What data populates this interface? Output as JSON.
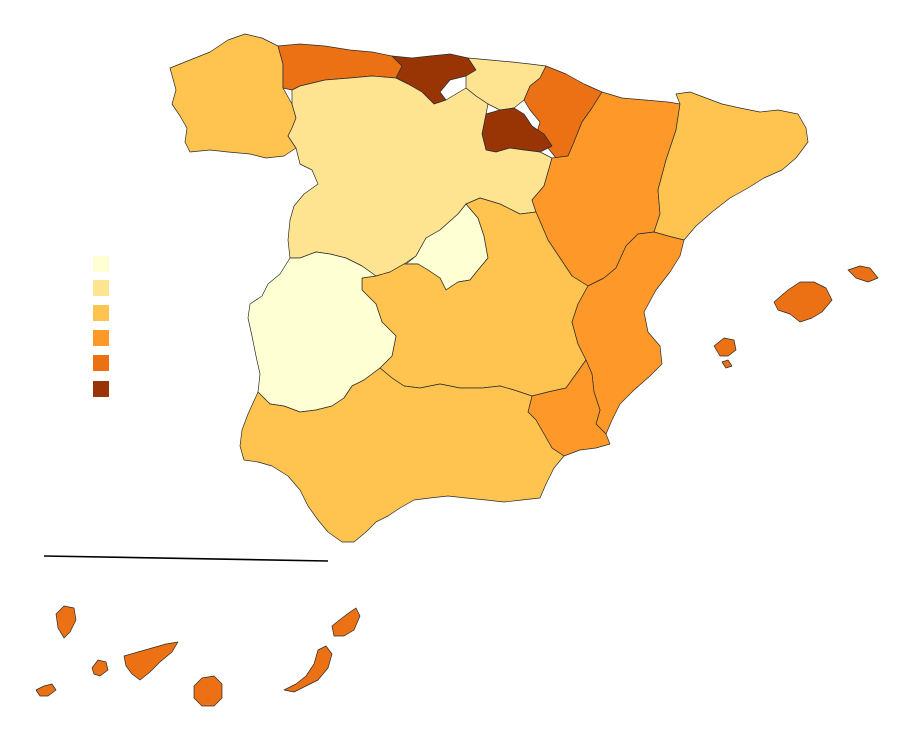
{
  "map": {
    "legend": {
      "classes": [
        {
          "id": "class-1",
          "color": "#ffffd4"
        },
        {
          "id": "class-2",
          "color": "#fee391"
        },
        {
          "id": "class-3",
          "color": "#fec44f"
        },
        {
          "id": "class-4",
          "color": "#fe9929"
        },
        {
          "id": "class-5",
          "color": "#ec7014"
        },
        {
          "id": "class-6",
          "color": "#993404"
        }
      ]
    },
    "region_classes": {
      "galicia": "class-3",
      "asturias": "class-5",
      "cantabria": "class-6",
      "pais-vasco": "class-2",
      "navarra": "class-5",
      "la-rioja": "class-6",
      "castilla-y-leon": "class-2",
      "aragon": "class-4",
      "cataluna": "class-3",
      "madrid": "class-1",
      "castilla-la-mancha": "class-3",
      "extremadura": "class-1",
      "comunidad-valenciana": "class-4",
      "murcia": "class-4",
      "andalucia": "class-3",
      "baleares": "class-5",
      "canarias": "class-5"
    }
  }
}
